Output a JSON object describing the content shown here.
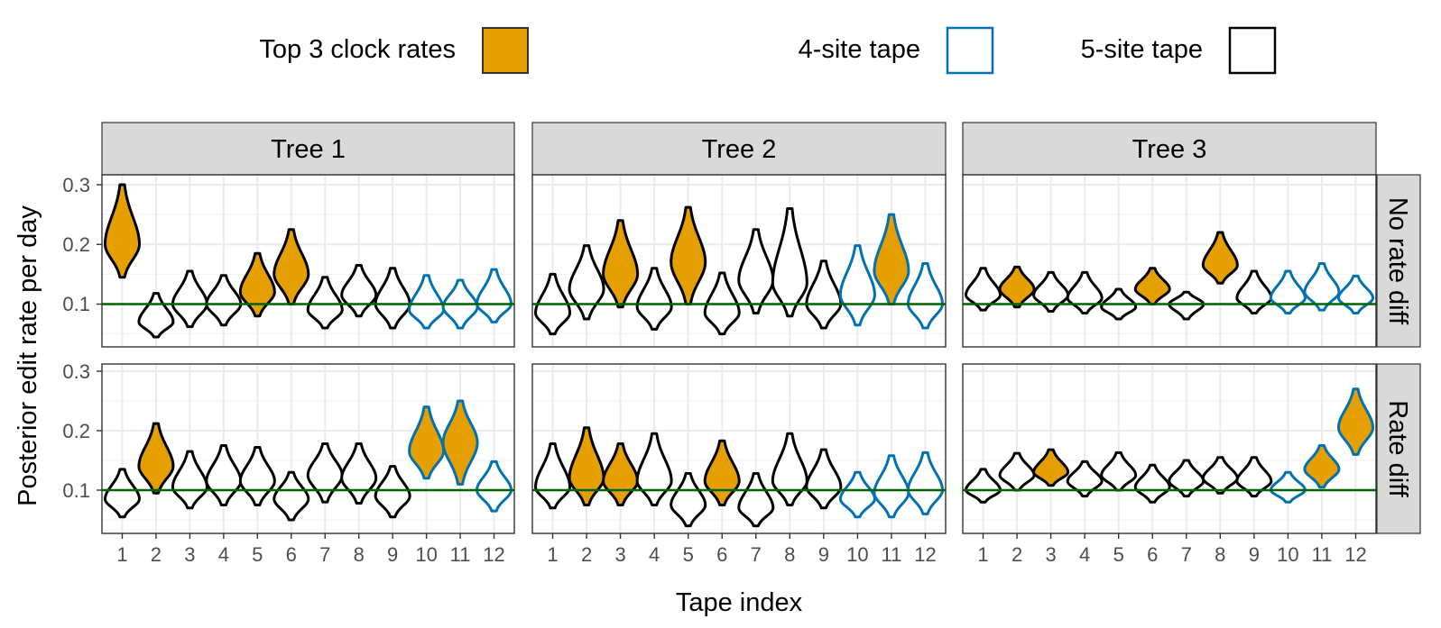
{
  "chart_data": {
    "type": "violin",
    "xlabel": "Tape index",
    "ylabel": "Posterior edit rate per day",
    "x_ticks": [
      "1",
      "2",
      "3",
      "4",
      "5",
      "6",
      "7",
      "8",
      "9",
      "10",
      "11",
      "12"
    ],
    "y_ticks": [
      "0.1",
      "0.2",
      "0.3"
    ],
    "ylim": [
      0.025,
      0.31
    ],
    "grid": true,
    "reference_line": {
      "y": 0.1,
      "color": "#006400"
    },
    "legend": {
      "position": "top",
      "items": [
        {
          "label": "Top 3 clock rates",
          "fill": "#E69F00",
          "stroke": "#333333"
        },
        {
          "label": "4-site tape",
          "fill": "#FFFFFF",
          "stroke": "#0072B2"
        },
        {
          "label": "5-site tape",
          "fill": "#FFFFFF",
          "stroke": "#000000"
        }
      ]
    },
    "colors": {
      "top3": "#E69F00",
      "four_site": "#0072B2",
      "five_site": "#000000",
      "strip": "#D9D9D9",
      "grid": "#EBEBEB"
    },
    "facet_cols": [
      "Tree 1",
      "Tree 2",
      "Tree 3"
    ],
    "facet_rows": [
      "No rate diff",
      "Rate diff"
    ],
    "panels": [
      {
        "tree": "Tree 1",
        "condition": "No rate diff",
        "top3": [
          1,
          5,
          6
        ],
        "violins": [
          {
            "tape": 1,
            "median": 0.2,
            "low": 0.145,
            "high": 0.3
          },
          {
            "tape": 2,
            "median": 0.07,
            "low": 0.045,
            "high": 0.118
          },
          {
            "tape": 3,
            "median": 0.1,
            "low": 0.062,
            "high": 0.155
          },
          {
            "tape": 4,
            "median": 0.1,
            "low": 0.065,
            "high": 0.148
          },
          {
            "tape": 5,
            "median": 0.12,
            "low": 0.08,
            "high": 0.185
          },
          {
            "tape": 6,
            "median": 0.15,
            "low": 0.1,
            "high": 0.225
          },
          {
            "tape": 7,
            "median": 0.09,
            "low": 0.06,
            "high": 0.145
          },
          {
            "tape": 8,
            "median": 0.115,
            "low": 0.08,
            "high": 0.165
          },
          {
            "tape": 9,
            "median": 0.1,
            "low": 0.06,
            "high": 0.16
          },
          {
            "tape": 10,
            "median": 0.09,
            "low": 0.06,
            "high": 0.148
          },
          {
            "tape": 11,
            "median": 0.095,
            "low": 0.06,
            "high": 0.14
          },
          {
            "tape": 12,
            "median": 0.1,
            "low": 0.07,
            "high": 0.158
          }
        ]
      },
      {
        "tree": "Tree 2",
        "condition": "No rate diff",
        "top3": [
          3,
          5,
          11
        ],
        "violins": [
          {
            "tape": 1,
            "median": 0.085,
            "low": 0.05,
            "high": 0.15
          },
          {
            "tape": 2,
            "median": 0.125,
            "low": 0.075,
            "high": 0.198
          },
          {
            "tape": 3,
            "median": 0.15,
            "low": 0.095,
            "high": 0.24
          },
          {
            "tape": 4,
            "median": 0.095,
            "low": 0.058,
            "high": 0.16
          },
          {
            "tape": 5,
            "median": 0.17,
            "low": 0.1,
            "high": 0.262
          },
          {
            "tape": 6,
            "median": 0.085,
            "low": 0.05,
            "high": 0.152
          },
          {
            "tape": 7,
            "median": 0.14,
            "low": 0.085,
            "high": 0.225
          },
          {
            "tape": 8,
            "median": 0.135,
            "low": 0.08,
            "high": 0.26
          },
          {
            "tape": 9,
            "median": 0.1,
            "low": 0.06,
            "high": 0.172
          },
          {
            "tape": 10,
            "median": 0.115,
            "low": 0.065,
            "high": 0.198
          },
          {
            "tape": 11,
            "median": 0.155,
            "low": 0.1,
            "high": 0.25
          },
          {
            "tape": 12,
            "median": 0.1,
            "low": 0.06,
            "high": 0.168
          }
        ]
      },
      {
        "tree": "Tree 3",
        "condition": "No rate diff",
        "top3": [
          2,
          6,
          8
        ],
        "violins": [
          {
            "tape": 1,
            "median": 0.115,
            "low": 0.09,
            "high": 0.16
          },
          {
            "tape": 2,
            "median": 0.125,
            "low": 0.095,
            "high": 0.162
          },
          {
            "tape": 3,
            "median": 0.115,
            "low": 0.088,
            "high": 0.153
          },
          {
            "tape": 4,
            "median": 0.11,
            "low": 0.085,
            "high": 0.153
          },
          {
            "tape": 5,
            "median": 0.095,
            "low": 0.075,
            "high": 0.125
          },
          {
            "tape": 6,
            "median": 0.125,
            "low": 0.1,
            "high": 0.16
          },
          {
            "tape": 7,
            "median": 0.1,
            "low": 0.075,
            "high": 0.12
          },
          {
            "tape": 8,
            "median": 0.165,
            "low": 0.135,
            "high": 0.22
          },
          {
            "tape": 9,
            "median": 0.11,
            "low": 0.085,
            "high": 0.155
          },
          {
            "tape": 10,
            "median": 0.11,
            "low": 0.085,
            "high": 0.155
          },
          {
            "tape": 11,
            "median": 0.12,
            "low": 0.09,
            "high": 0.168
          },
          {
            "tape": 12,
            "median": 0.11,
            "low": 0.085,
            "high": 0.147
          }
        ]
      },
      {
        "tree": "Tree 1",
        "condition": "Rate diff",
        "top3": [
          2,
          10,
          11
        ],
        "violins": [
          {
            "tape": 1,
            "median": 0.085,
            "low": 0.055,
            "high": 0.135
          },
          {
            "tape": 2,
            "median": 0.14,
            "low": 0.095,
            "high": 0.212
          },
          {
            "tape": 3,
            "median": 0.105,
            "low": 0.07,
            "high": 0.165
          },
          {
            "tape": 4,
            "median": 0.115,
            "low": 0.075,
            "high": 0.175
          },
          {
            "tape": 5,
            "median": 0.115,
            "low": 0.075,
            "high": 0.172
          },
          {
            "tape": 6,
            "median": 0.085,
            "low": 0.05,
            "high": 0.13
          },
          {
            "tape": 7,
            "median": 0.125,
            "low": 0.08,
            "high": 0.178
          },
          {
            "tape": 8,
            "median": 0.12,
            "low": 0.078,
            "high": 0.178
          },
          {
            "tape": 9,
            "median": 0.09,
            "low": 0.055,
            "high": 0.14
          },
          {
            "tape": 10,
            "median": 0.165,
            "low": 0.12,
            "high": 0.24
          },
          {
            "tape": 11,
            "median": 0.18,
            "low": 0.11,
            "high": 0.25
          },
          {
            "tape": 12,
            "median": 0.1,
            "low": 0.065,
            "high": 0.148
          }
        ]
      },
      {
        "tree": "Tree 2",
        "condition": "Rate diff",
        "top3": [
          2,
          3,
          6
        ],
        "violins": [
          {
            "tape": 1,
            "median": 0.105,
            "low": 0.07,
            "high": 0.178
          },
          {
            "tape": 2,
            "median": 0.12,
            "low": 0.075,
            "high": 0.205
          },
          {
            "tape": 3,
            "median": 0.115,
            "low": 0.075,
            "high": 0.178
          },
          {
            "tape": 4,
            "median": 0.115,
            "low": 0.075,
            "high": 0.195
          },
          {
            "tape": 5,
            "median": 0.075,
            "low": 0.04,
            "high": 0.128
          },
          {
            "tape": 6,
            "median": 0.115,
            "low": 0.075,
            "high": 0.183
          },
          {
            "tape": 7,
            "median": 0.07,
            "low": 0.04,
            "high": 0.128
          },
          {
            "tape": 8,
            "median": 0.115,
            "low": 0.075,
            "high": 0.195
          },
          {
            "tape": 9,
            "median": 0.105,
            "low": 0.07,
            "high": 0.168
          },
          {
            "tape": 10,
            "median": 0.085,
            "low": 0.055,
            "high": 0.13
          },
          {
            "tape": 11,
            "median": 0.095,
            "low": 0.055,
            "high": 0.158
          },
          {
            "tape": 12,
            "median": 0.1,
            "low": 0.06,
            "high": 0.163
          }
        ]
      },
      {
        "tree": "Tree 3",
        "condition": "Rate diff",
        "top3": [
          3,
          11,
          12
        ],
        "violins": [
          {
            "tape": 1,
            "median": 0.1,
            "low": 0.08,
            "high": 0.135
          },
          {
            "tape": 2,
            "median": 0.125,
            "low": 0.1,
            "high": 0.162
          },
          {
            "tape": 3,
            "median": 0.13,
            "low": 0.108,
            "high": 0.168
          },
          {
            "tape": 4,
            "median": 0.115,
            "low": 0.09,
            "high": 0.148
          },
          {
            "tape": 5,
            "median": 0.125,
            "low": 0.1,
            "high": 0.163
          },
          {
            "tape": 6,
            "median": 0.105,
            "low": 0.08,
            "high": 0.142
          },
          {
            "tape": 7,
            "median": 0.115,
            "low": 0.09,
            "high": 0.15
          },
          {
            "tape": 8,
            "median": 0.12,
            "low": 0.095,
            "high": 0.155
          },
          {
            "tape": 9,
            "median": 0.115,
            "low": 0.09,
            "high": 0.155
          },
          {
            "tape": 10,
            "median": 0.1,
            "low": 0.08,
            "high": 0.13
          },
          {
            "tape": 11,
            "median": 0.135,
            "low": 0.105,
            "high": 0.175
          },
          {
            "tape": 12,
            "median": 0.205,
            "low": 0.16,
            "high": 0.27
          }
        ]
      }
    ]
  }
}
